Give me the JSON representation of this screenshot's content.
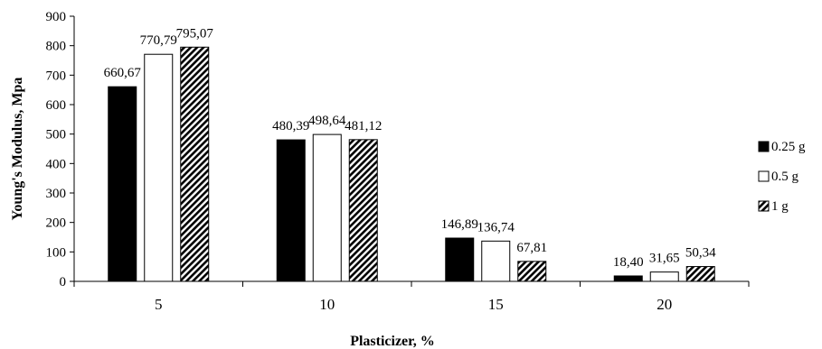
{
  "chart_data": {
    "type": "bar",
    "title": "",
    "xlabel": "Plasticizer, %",
    "ylabel": "Young's Modulus, Mpa",
    "categories": [
      "5",
      "10",
      "15",
      "20"
    ],
    "ylim": [
      0,
      900
    ],
    "yticks": [
      0,
      100,
      200,
      300,
      400,
      500,
      600,
      700,
      800,
      900
    ],
    "grid": false,
    "legend_position": "right",
    "series": [
      {
        "name": "0.25 g",
        "fill": "solid-black",
        "values": [
          660.67,
          480.39,
          146.89,
          18.4
        ],
        "labels": [
          "660,67",
          "480,39",
          "146,89",
          "18,40"
        ]
      },
      {
        "name": "0.5 g",
        "fill": "white",
        "values": [
          770.79,
          498.64,
          136.74,
          31.65
        ],
        "labels": [
          "770,79",
          "498,64",
          "136,74",
          "31,65"
        ]
      },
      {
        "name": "1 g",
        "fill": "diagonal-hatch",
        "values": [
          795.07,
          481.12,
          67.81,
          50.34
        ],
        "labels": [
          "795,07",
          "481,12",
          "67,81",
          "50,34"
        ]
      }
    ]
  }
}
